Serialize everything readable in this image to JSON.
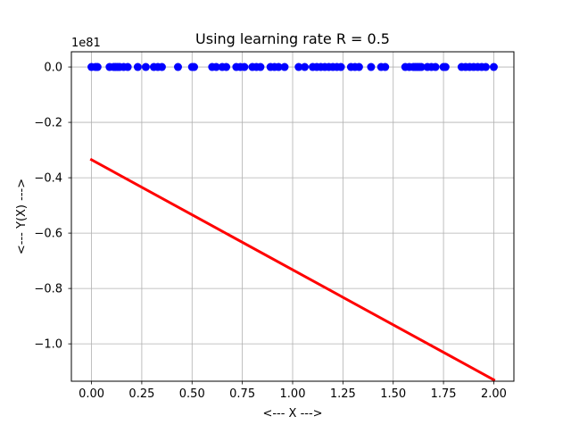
{
  "chart_data": {
    "type": "scatter",
    "title": "Using learning rate R = 0.5",
    "xlabel": "<--- X --->",
    "ylabel": "<--- Y(X) --->",
    "y_offset_label": "1e81",
    "xlim": [
      -0.1,
      2.1
    ],
    "ylim": [
      -1.135,
      0.055
    ],
    "grid": true,
    "x_ticks": [
      0.0,
      0.25,
      0.5,
      0.75,
      1.0,
      1.25,
      1.5,
      1.75,
      2.0
    ],
    "x_tick_labels": [
      "0.00",
      "0.25",
      "0.50",
      "0.75",
      "1.00",
      "1.25",
      "1.50",
      "1.75",
      "2.00"
    ],
    "y_ticks": [
      0.0,
      -0.2,
      -0.4,
      -0.6,
      -0.8,
      -1.0
    ],
    "y_tick_labels": [
      "0.0",
      "−0.2",
      "−0.4",
      "−0.6",
      "−0.8",
      "−1.0"
    ],
    "series": [
      {
        "kind": "scatter",
        "color": "#0000ff",
        "x": [
          0.0,
          0.02,
          0.03,
          0.09,
          0.11,
          0.12,
          0.13,
          0.14,
          0.16,
          0.18,
          0.23,
          0.27,
          0.31,
          0.33,
          0.35,
          0.43,
          0.5,
          0.51,
          0.6,
          0.62,
          0.65,
          0.67,
          0.72,
          0.74,
          0.76,
          0.8,
          0.82,
          0.84,
          0.89,
          0.91,
          0.93,
          0.96,
          1.03,
          1.06,
          1.1,
          1.12,
          1.14,
          1.16,
          1.18,
          1.2,
          1.22,
          1.24,
          1.29,
          1.31,
          1.33,
          1.39,
          1.44,
          1.46,
          1.56,
          1.58,
          1.6,
          1.61,
          1.62,
          1.63,
          1.64,
          1.67,
          1.69,
          1.71,
          1.75,
          1.76,
          1.84,
          1.86,
          1.88,
          1.9,
          1.92,
          1.94,
          1.96,
          2.0
        ],
        "y": [
          0.0,
          0.0,
          0.0,
          0.0,
          0.0,
          0.0,
          0.0,
          0.0,
          0.0,
          0.0,
          0.0,
          0.0,
          0.0,
          0.0,
          0.0,
          0.0,
          0.0,
          0.0,
          0.0,
          0.0,
          0.0,
          0.0,
          0.0,
          0.0,
          0.0,
          0.0,
          0.0,
          0.0,
          0.0,
          0.0,
          0.0,
          0.0,
          0.0,
          0.0,
          0.0,
          0.0,
          0.0,
          0.0,
          0.0,
          0.0,
          0.0,
          0.0,
          0.0,
          0.0,
          0.0,
          0.0,
          0.0,
          0.0,
          0.0,
          0.0,
          0.0,
          0.0,
          0.0,
          0.0,
          0.0,
          0.0,
          0.0,
          0.0,
          0.0,
          0.0,
          0.0,
          0.0,
          0.0,
          0.0,
          0.0,
          0.0,
          0.0,
          0.0
        ]
      },
      {
        "kind": "line",
        "color": "#ff0000",
        "x": [
          0.0,
          2.0
        ],
        "y": [
          -0.335,
          -1.13
        ]
      }
    ]
  }
}
